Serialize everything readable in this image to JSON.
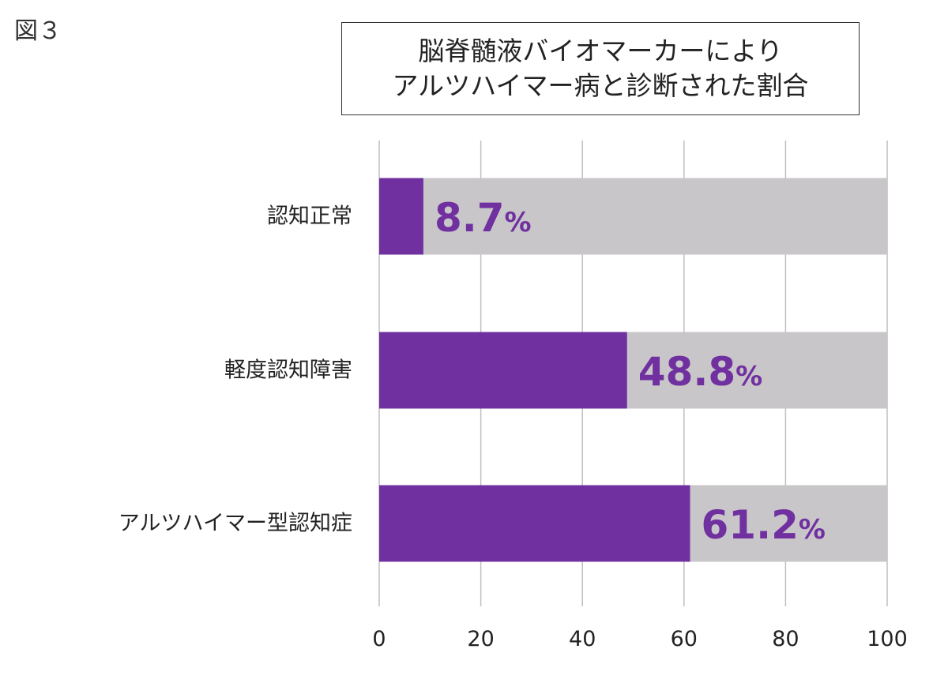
{
  "figure_label": "図３",
  "chart_data": {
    "type": "bar",
    "orientation": "horizontal",
    "stacked_with_remainder": true,
    "title_lines": [
      "脳脊髄液バイオマーカーにより",
      "アルツハイマー病と診断された割合"
    ],
    "categories": [
      "認知正常",
      "軽度認知障害",
      "アルツハイマー型認知症"
    ],
    "values": [
      8.7,
      48.8,
      61.2
    ],
    "value_labels": [
      "8.7",
      "48.8",
      "61.2"
    ],
    "value_unit": "%",
    "xlim": [
      0,
      100
    ],
    "xticks": [
      0,
      20,
      40,
      60,
      80,
      100
    ],
    "grid": true,
    "legend": "none",
    "colors": {
      "bar": "#7030a0",
      "remainder": "#c8c6c8",
      "grid": "#bfbfbf",
      "label": "#7030a0"
    }
  }
}
